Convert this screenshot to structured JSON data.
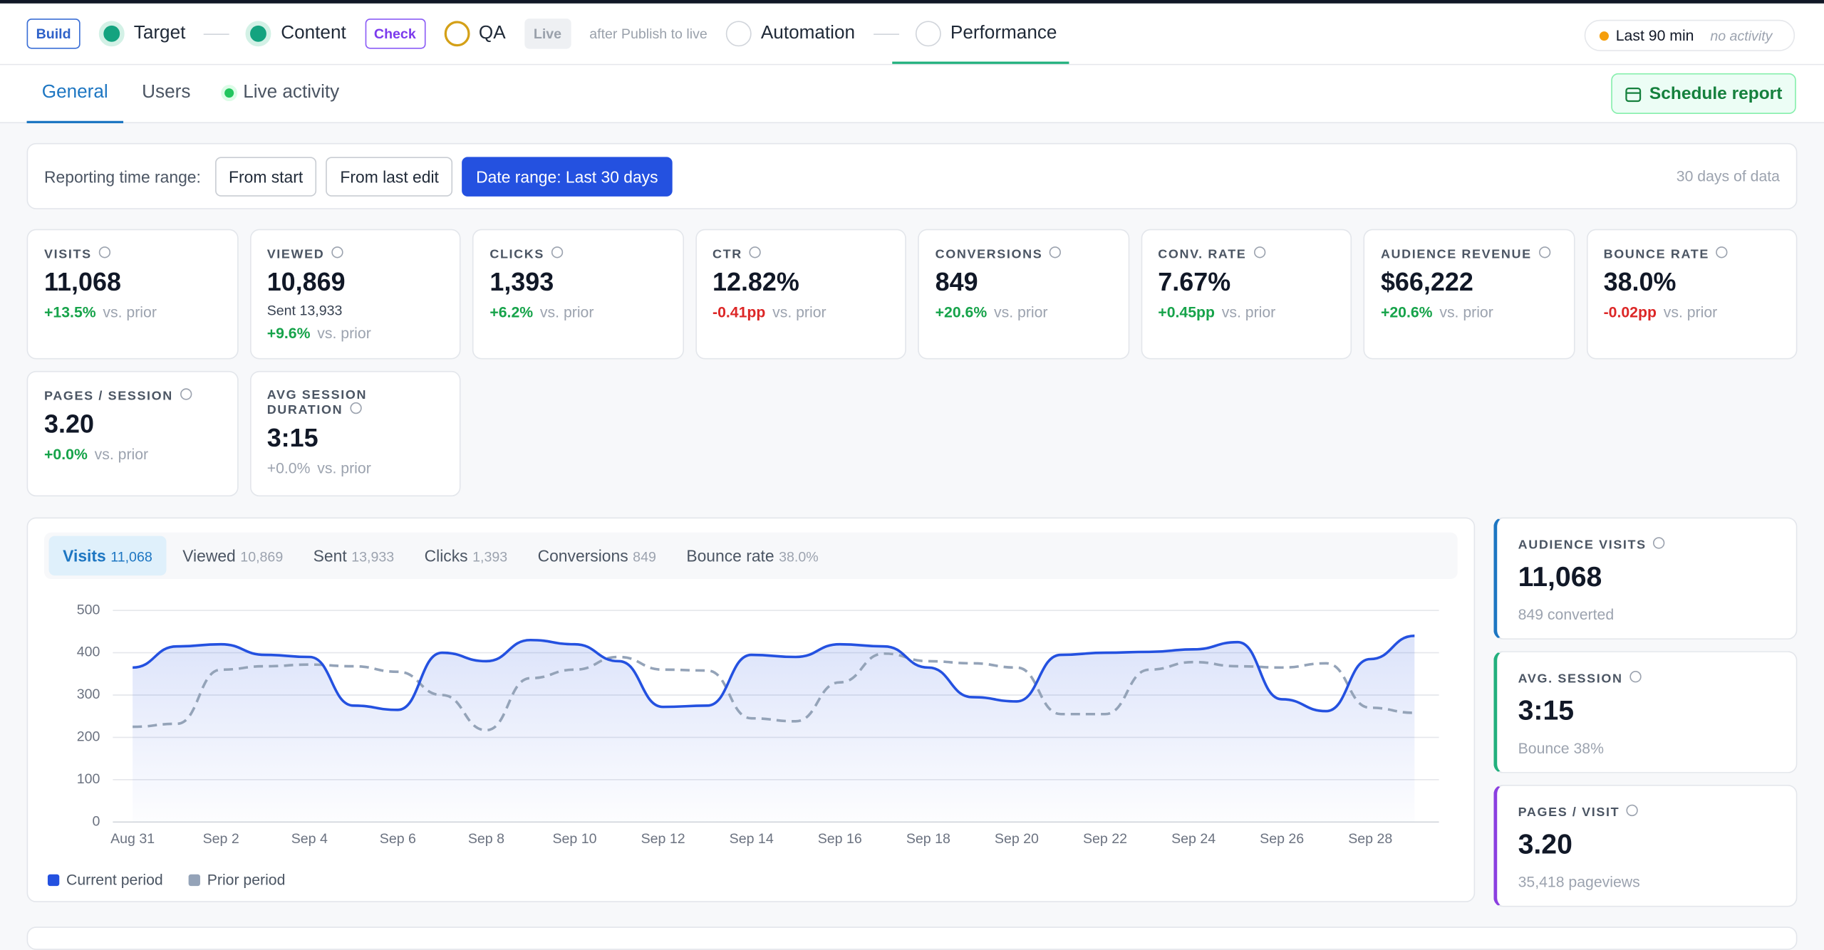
{
  "top_nav": {
    "items": [
      {
        "kind": "badge",
        "text": "Build",
        "tone": "blue"
      },
      {
        "kind": "step",
        "text": "Target",
        "icon": "green"
      },
      {
        "kind": "sep"
      },
      {
        "kind": "step",
        "text": "Content",
        "icon": "green"
      },
      {
        "kind": "badge",
        "text": "Check",
        "tone": "purple"
      },
      {
        "kind": "step",
        "text": "QA",
        "icon": "yellow"
      },
      {
        "kind": "badge",
        "text": "Live",
        "tone": "gray"
      },
      {
        "kind": "note",
        "text": "after Publish to live"
      },
      {
        "kind": "step",
        "text": "Automation",
        "icon": "gray"
      },
      {
        "kind": "sep"
      },
      {
        "kind": "step",
        "text": "Performance",
        "icon": "gray",
        "active": true
      }
    ],
    "status": {
      "label": "Last 90 min",
      "note": "no activity"
    }
  },
  "tabs": {
    "items": [
      "General",
      "Users",
      "Live activity"
    ],
    "action": "Schedule report"
  },
  "time_range": {
    "label": "Reporting time range:",
    "options": [
      "From start",
      "From last edit",
      "Date range: Last 30 days"
    ],
    "note": "30 days of data"
  },
  "kpis": [
    {
      "label": "VISITS",
      "value": "11,068",
      "delta": "+13.5%",
      "trend": "up",
      "suffix": "vs. prior"
    },
    {
      "label": "VIEWED",
      "value": "10,869",
      "sub_label": "Sent",
      "sub_value": "13,933",
      "delta": "+9.6%",
      "trend": "up",
      "suffix": "vs. prior"
    },
    {
      "label": "CLICKS",
      "value": "1,393",
      "delta": "+6.2%",
      "trend": "up",
      "suffix": "vs. prior"
    },
    {
      "label": "CTR",
      "value": "12.82%",
      "delta": "-0.41pp",
      "trend": "down",
      "suffix": "vs. prior"
    },
    {
      "label": "CONVERSIONS",
      "value": "849",
      "delta": "+20.6%",
      "trend": "up",
      "suffix": "vs. prior"
    },
    {
      "label": "CONV. RATE",
      "value": "7.67%",
      "delta": "+0.45pp",
      "trend": "up",
      "suffix": "vs. prior"
    },
    {
      "label": "AUDIENCE REVENUE",
      "value": "$66,222",
      "delta": "+20.6%",
      "trend": "up",
      "suffix": "vs. prior"
    },
    {
      "label": "BOUNCE RATE",
      "value": "38.0%",
      "delta": "-0.02pp",
      "trend": "down",
      "suffix": "vs. prior"
    },
    {
      "label": "PAGES / SESSION",
      "value": "3.20",
      "delta": "+0.0%",
      "trend": "up",
      "suffix": "vs. prior"
    },
    {
      "label": "AVG SESSION DURATION",
      "value": "3:15",
      "delta": "+0.0%",
      "trend": "flat",
      "suffix": "vs. prior"
    }
  ],
  "chart_tabs": [
    {
      "label": "Visits",
      "value": "11,068",
      "active": true
    },
    {
      "label": "Viewed",
      "value": "10,869"
    },
    {
      "label": "Sent",
      "value": "13,933"
    },
    {
      "label": "Clicks",
      "value": "1,393"
    },
    {
      "label": "Conversions",
      "value": "849"
    },
    {
      "label": "Bounce rate",
      "value": "38.0%"
    }
  ],
  "chart_data": {
    "type": "line",
    "categories": [
      "Aug 31",
      null,
      "Sep 2",
      null,
      "Sep 4",
      null,
      "Sep 6",
      null,
      "Sep 8",
      null,
      "Sep 10",
      null,
      "Sep 12",
      null,
      "Sep 14",
      null,
      "Sep 16",
      null,
      "Sep 18",
      null,
      "Sep 20",
      null,
      "Sep 22",
      null,
      "Sep 24",
      null,
      "Sep 26",
      null,
      "Sep 28",
      null
    ],
    "series": [
      {
        "name": "Current period",
        "color": "#2451e0",
        "area": true,
        "values": [
          365,
          415,
          420,
          395,
          390,
          275,
          265,
          400,
          380,
          430,
          420,
          380,
          272,
          275,
          395,
          390,
          420,
          415,
          365,
          295,
          285,
          395,
          400,
          402,
          408,
          425,
          290,
          262,
          385,
          440
        ]
      },
      {
        "name": "Prior period",
        "color": "#94a3b8",
        "dashed": true,
        "values": [
          225,
          232,
          360,
          368,
          372,
          368,
          355,
          300,
          217,
          340,
          360,
          390,
          360,
          358,
          245,
          238,
          330,
          398,
          380,
          375,
          365,
          255,
          255,
          360,
          378,
          368,
          365,
          375,
          270,
          258
        ]
      }
    ],
    "ylim": [
      0,
      500
    ],
    "yticks": [
      0,
      100,
      200,
      300,
      400,
      500
    ],
    "grid": true,
    "legend": "bottom-left"
  },
  "side_cards": [
    {
      "label": "AUDIENCE VISITS",
      "value": "11,068",
      "note": "849 converted",
      "color": "#1d76c2"
    },
    {
      "label": "AVG. SESSION",
      "value": "3:15",
      "note": "Bounce 38%",
      "color": "#22b07d"
    },
    {
      "label": "PAGES / VISIT",
      "value": "3.20",
      "note": "35,418 pageviews",
      "color": "#8b3fe0"
    }
  ]
}
